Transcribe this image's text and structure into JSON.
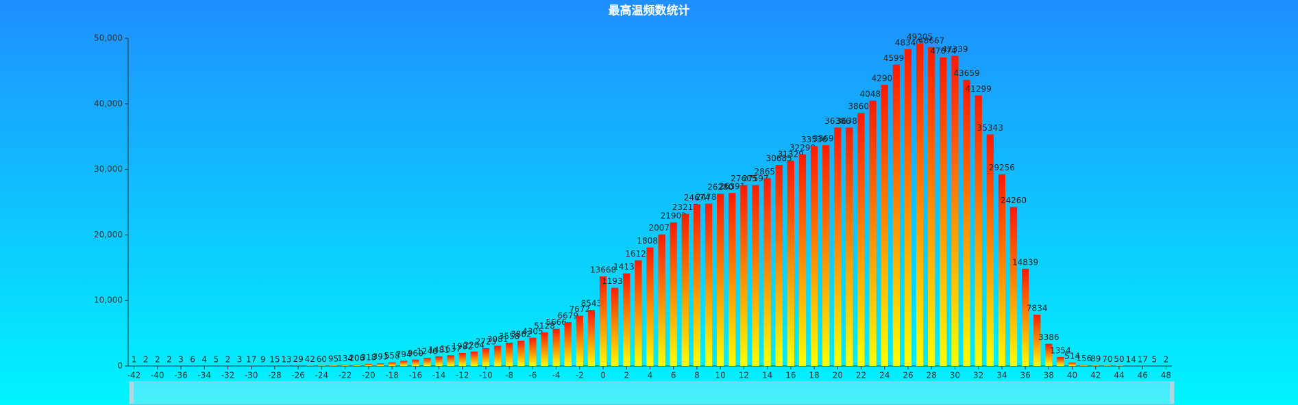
{
  "chart_data": {
    "type": "bar",
    "title": "最高温频数统计",
    "categories": [
      "-42",
      null,
      "-40",
      null,
      "-36",
      null,
      "-34",
      null,
      "-32",
      null,
      "-30",
      null,
      "-28",
      null,
      "-26",
      null,
      "-24",
      null,
      "-22",
      null,
      "-20",
      null,
      "-18",
      null,
      "-16",
      null,
      "-14",
      null,
      "-12",
      null,
      "-10",
      null,
      "-8",
      null,
      "-6",
      null,
      "-4",
      null,
      "-2",
      null,
      "0",
      null,
      "2",
      null,
      "4",
      null,
      "6",
      null,
      "8",
      null,
      "10",
      null,
      "12",
      null,
      "14",
      null,
      "16",
      null,
      "18",
      null,
      "20",
      null,
      "22",
      null,
      "24",
      null,
      "26",
      null,
      "28",
      null,
      "30",
      null,
      "32",
      null,
      "34",
      null,
      "36",
      null,
      "38",
      null,
      "40",
      null,
      "42",
      null,
      "44",
      null,
      "46",
      null,
      "48"
    ],
    "values": [
      1,
      2,
      2,
      2,
      3,
      6,
      4,
      5,
      2,
      3,
      17,
      9,
      15,
      13,
      29,
      42,
      60,
      95,
      134,
      206,
      318,
      393,
      558,
      794,
      960,
      1240,
      1481,
      1637,
      1982,
      2204,
      2723,
      3081,
      3558,
      3862,
      4305,
      5128,
      5666,
      6679,
      7672,
      8543,
      13668,
      11937,
      14131,
      16127,
      18087,
      20077,
      21903,
      23217,
      24674,
      24780,
      26280,
      26391,
      27605,
      27597,
      28659,
      30685,
      31329,
      32290,
      33536,
      33699,
      36386,
      36386,
      38609,
      40489,
      42904,
      45991,
      48340,
      49205,
      48667,
      47074,
      47339,
      43659,
      41299,
      35343,
      29256,
      24260,
      14839,
      7834,
      3386,
      1354,
      514,
      156,
      89,
      70,
      50,
      14,
      17,
      5,
      2
    ],
    "colors": [
      "#ff1a00",
      "#ffff00"
    ],
    "ylim": [
      0,
      50000
    ],
    "yticks": [
      0,
      {
        "value": 10000,
        "label": "10,000"
      },
      {
        "value": 20000,
        "label": "20,000"
      },
      {
        "value": 30000,
        "label": "30,000"
      },
      {
        "value": 40000,
        "label": "40,000"
      },
      {
        "value": 50000,
        "label": "50,000"
      }
    ]
  }
}
